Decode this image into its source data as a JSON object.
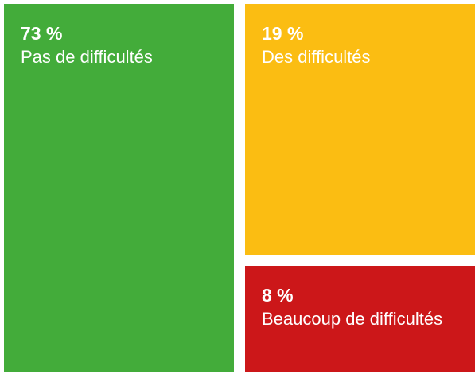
{
  "chart_data": {
    "type": "treemap",
    "categories": [
      "Pas de difficultés",
      "Des difficultés",
      "Beaucoup de difficultés"
    ],
    "values": [
      73,
      19,
      8
    ],
    "value_labels": [
      "73 %",
      "19 %",
      "8 %"
    ],
    "colors": [
      "#43ac3a",
      "#fbbd12",
      "#cc1719"
    ]
  }
}
